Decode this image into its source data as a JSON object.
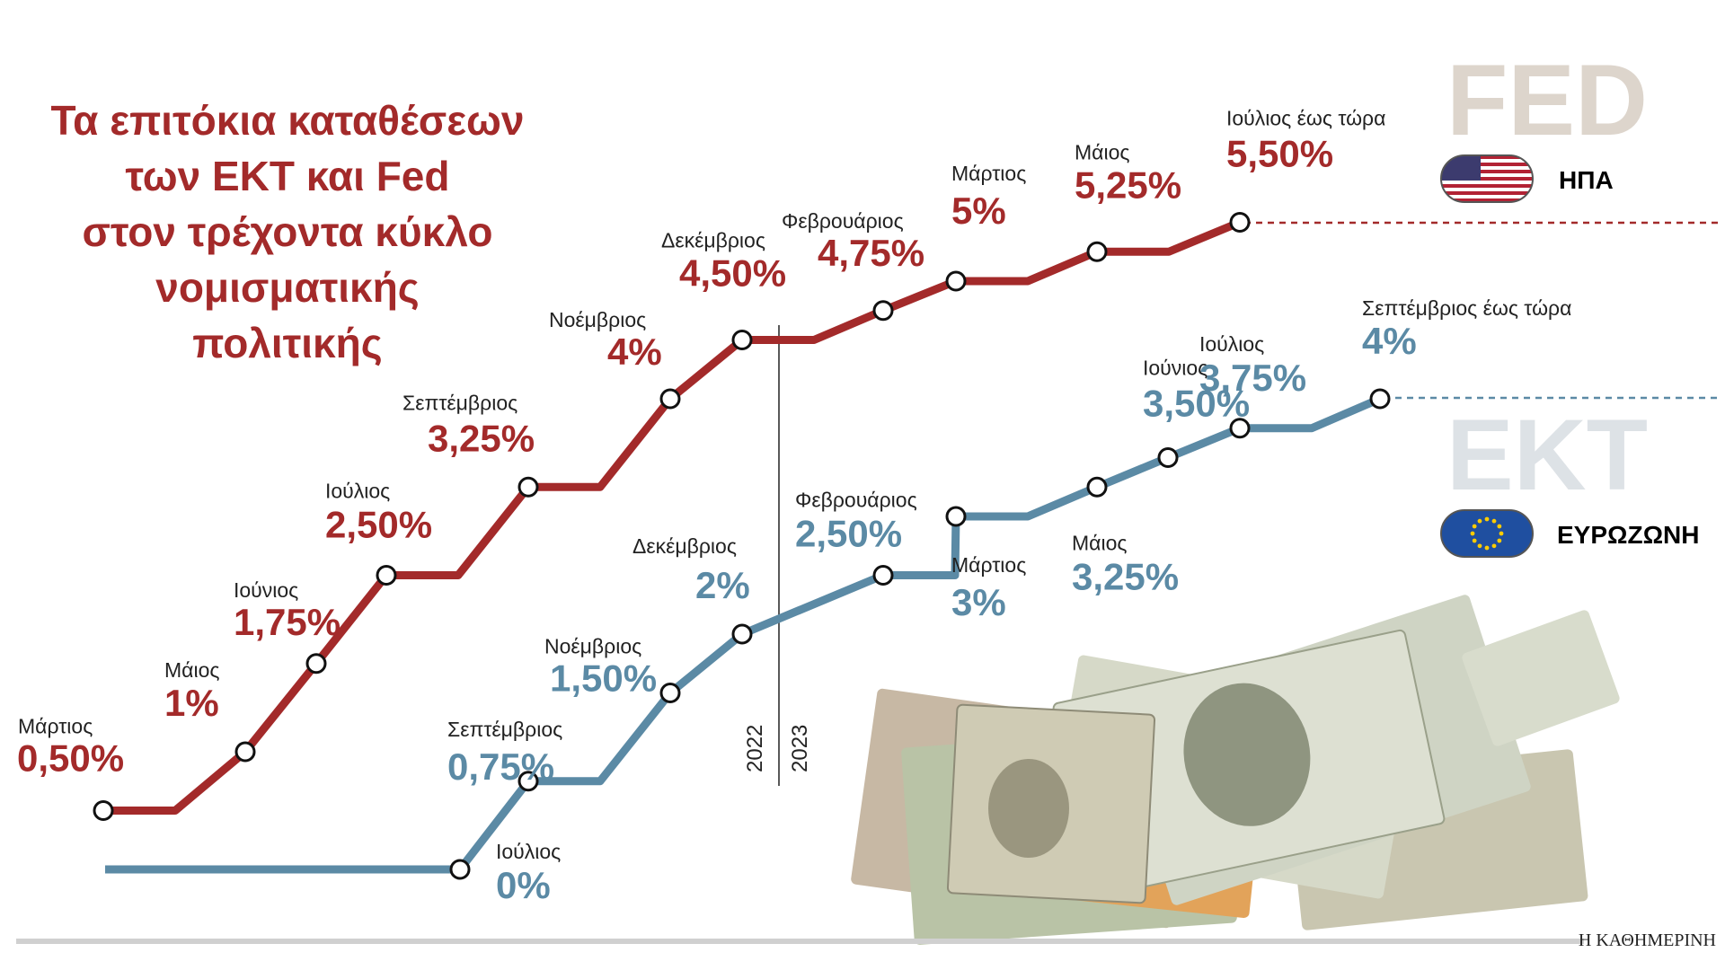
{
  "title_lines": [
    "Τα επιτόκια καταθέσεων",
    "των ΕΚΤ και Fed",
    "στον τρέχοντα κύκλο",
    "νομισματικής",
    "πολιτικής"
  ],
  "labels": {
    "fed": "FED",
    "fed_region": "ΗΠΑ",
    "ekt": "ΕΚΤ",
    "ekt_region": "ΕΥΡΩΖΩΝΗ",
    "year_2022": "2022",
    "year_2023": "2023",
    "source": "Η ΚΑΘΗΜΕΡΙΝΗ"
  },
  "colors": {
    "fed": "#a32a2a",
    "ekt": "#5b8aa5",
    "title": "#a32a2a",
    "watermark_fed": "#ddd5cc",
    "watermark_ekt": "#dde2e6"
  },
  "icons": {
    "fed_flag": "us-flag-icon",
    "ekt_flag": "eu-flag-icon",
    "decoration": "banknotes-image"
  },
  "chart_data": {
    "type": "line",
    "title": "Τα επιτόκια καταθέσεων των ΕΚΤ και Fed στον τρέχοντα κύκλο νομισματικής πολιτικής",
    "x": [
      "2022-03",
      "2022-05",
      "2022-06",
      "2022-07",
      "2022-09",
      "2022-11",
      "2022-12",
      "2023-02",
      "2023-03",
      "2023-05",
      "2023-06",
      "2023-07",
      "2023-09"
    ],
    "ylim": [
      -0.5,
      6.5
    ],
    "series": [
      {
        "name": "FED",
        "region": "ΗΠΑ",
        "points": [
          {
            "month": "Μάρτιος",
            "label": "0,50%",
            "value": 0.5
          },
          {
            "month": "Μάιος",
            "label": "1%",
            "value": 1.0
          },
          {
            "month": "Ιούνιος",
            "label": "1,75%",
            "value": 1.75
          },
          {
            "month": "Ιούλιος",
            "label": "2,50%",
            "value": 2.5
          },
          {
            "month": "Σεπτέμβριος",
            "label": "3,25%",
            "value": 3.25
          },
          {
            "month": "Νοέμβριος",
            "label": "4%",
            "value": 4.0
          },
          {
            "month": "Δεκέμβριος",
            "label": "4,50%",
            "value": 4.5
          },
          {
            "month": "Φεβρουάριος",
            "label": "4,75%",
            "value": 4.75
          },
          {
            "month": "Μάρτιος",
            "label": "5%",
            "value": 5.0
          },
          {
            "month": "Μάιος",
            "label": "5,25%",
            "value": 5.25
          },
          {
            "month": "Ιούλιος έως τώρα",
            "label": "5,50%",
            "value": 5.5
          }
        ]
      },
      {
        "name": "ΕΚΤ",
        "region": "ΕΥΡΩΖΩΝΗ",
        "points": [
          {
            "month": "Ιούλιος",
            "label": "0%",
            "value": 0.0
          },
          {
            "month": "Σεπτέμβριος",
            "label": "0,75%",
            "value": 0.75
          },
          {
            "month": "Νοέμβριος",
            "label": "1,50%",
            "value": 1.5
          },
          {
            "month": "Δεκέμβριος",
            "label": "2%",
            "value": 2.0
          },
          {
            "month": "Φεβρουάριος",
            "label": "2,50%",
            "value": 2.5
          },
          {
            "month": "Μάρτιος",
            "label": "3%",
            "value": 3.0
          },
          {
            "month": "Μάιος",
            "label": "3,25%",
            "value": 3.25
          },
          {
            "month": "Ιούνιος",
            "label": "3,50%",
            "value": 3.5
          },
          {
            "month": "Ιούλιος",
            "label": "3,75%",
            "value": 3.75
          },
          {
            "month": "Σεπτέμβριος έως τώρα",
            "label": "4%",
            "value": 4.0
          }
        ]
      }
    ]
  }
}
